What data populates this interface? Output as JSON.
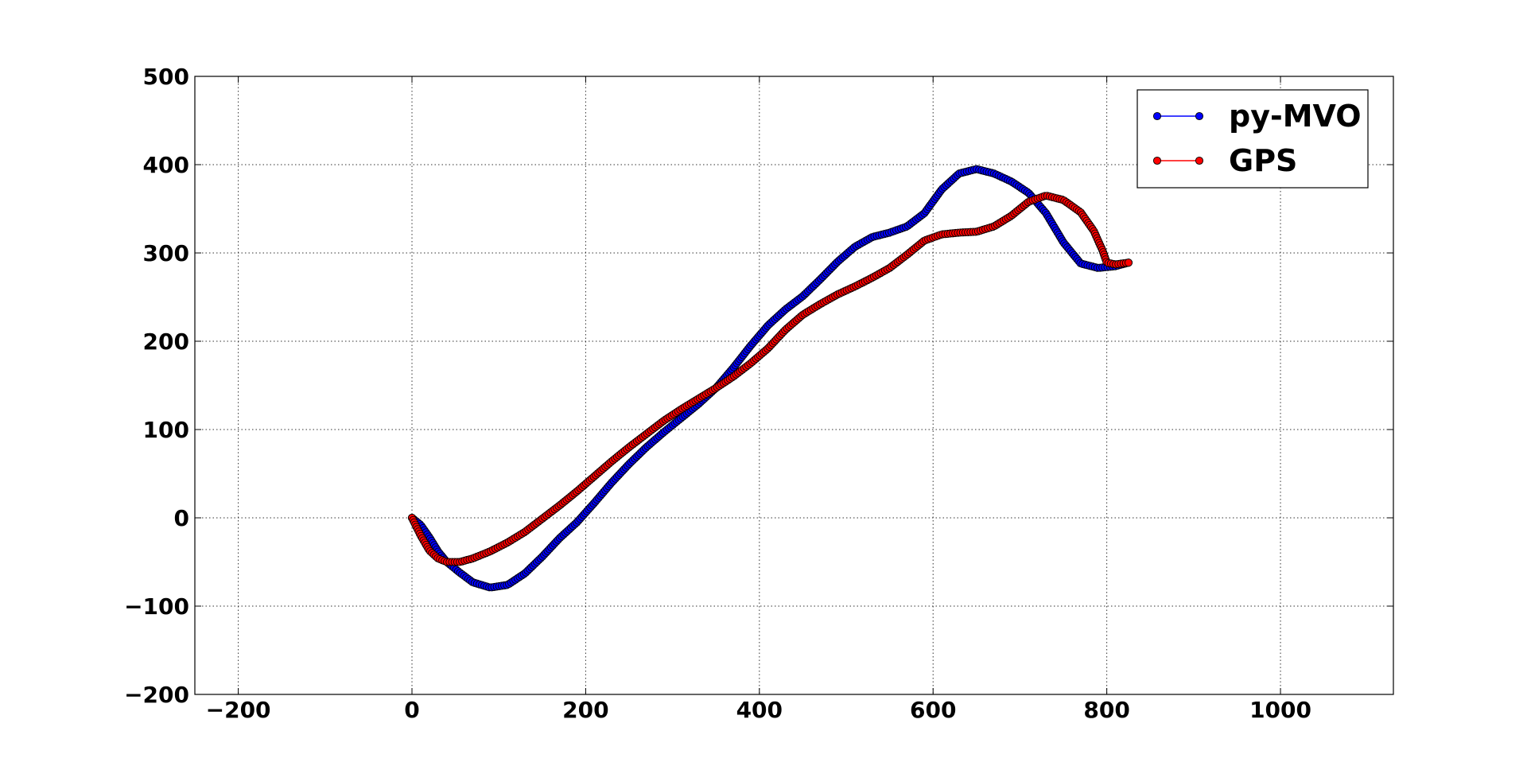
{
  "chart_data": {
    "type": "line",
    "title": "",
    "xlabel": "",
    "ylabel": "",
    "xlim": [
      -250,
      1130
    ],
    "ylim": [
      -200,
      500
    ],
    "xticks": [
      -200,
      0,
      200,
      400,
      600,
      800,
      1000
    ],
    "yticks": [
      -200,
      -100,
      0,
      100,
      200,
      300,
      400,
      500
    ],
    "xtick_labels": [
      "−200",
      "0",
      "200",
      "400",
      "600",
      "800",
      "1000"
    ],
    "ytick_labels": [
      "−200",
      "−100",
      "0",
      "100",
      "200",
      "300",
      "400",
      "500"
    ],
    "grid": true,
    "legend_position": "top-right",
    "series": [
      {
        "name": "py-MVO",
        "color": "#0000ff",
        "marker": "circle",
        "x": [
          0,
          10,
          20,
          30,
          40,
          55,
          70,
          90,
          110,
          130,
          150,
          170,
          190,
          210,
          230,
          250,
          270,
          290,
          310,
          330,
          350,
          370,
          390,
          410,
          430,
          450,
          470,
          490,
          510,
          530,
          550,
          570,
          590,
          610,
          630,
          650,
          670,
          690,
          710,
          730,
          750,
          770,
          790,
          810,
          825
        ],
        "y": [
          0,
          -8,
          -22,
          -38,
          -50,
          -62,
          -73,
          -79,
          -76,
          -63,
          -44,
          -23,
          -5,
          17,
          40,
          61,
          80,
          97,
          113,
          129,
          147,
          170,
          195,
          218,
          236,
          251,
          270,
          290,
          307,
          318,
          323,
          330,
          345,
          372,
          390,
          395,
          390,
          381,
          368,
          345,
          312,
          288,
          283,
          285,
          289
        ]
      },
      {
        "name": "GPS",
        "color": "#ff0000",
        "marker": "circle",
        "x": [
          0,
          10,
          20,
          30,
          40,
          55,
          70,
          90,
          110,
          130,
          150,
          170,
          190,
          210,
          230,
          250,
          270,
          290,
          310,
          330,
          350,
          370,
          390,
          410,
          430,
          450,
          470,
          490,
          510,
          530,
          550,
          570,
          590,
          610,
          630,
          650,
          670,
          690,
          710,
          730,
          750,
          770,
          785,
          795,
          800,
          810,
          825
        ],
        "y": [
          0,
          -20,
          -37,
          -46,
          -50,
          -50,
          -46,
          -38,
          -28,
          -16,
          -1,
          14,
          30,
          47,
          64,
          80,
          95,
          110,
          123,
          135,
          147,
          160,
          175,
          192,
          213,
          230,
          242,
          253,
          262,
          272,
          283,
          298,
          314,
          321,
          323,
          324,
          330,
          342,
          358,
          365,
          360,
          346,
          325,
          303,
          289,
          287,
          289
        ]
      }
    ]
  }
}
